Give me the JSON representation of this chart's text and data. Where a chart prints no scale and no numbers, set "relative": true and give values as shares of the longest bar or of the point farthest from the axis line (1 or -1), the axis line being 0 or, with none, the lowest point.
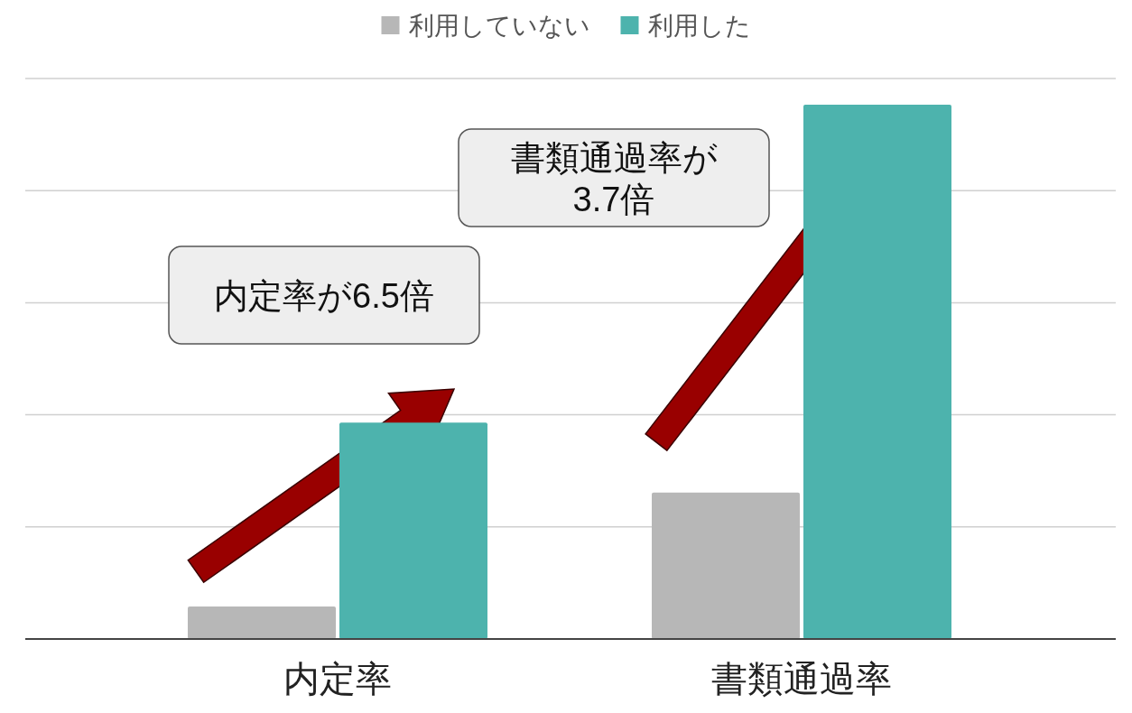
{
  "chart_data": {
    "type": "bar",
    "relative": true,
    "categories": [
      "内定率",
      "書類通過率"
    ],
    "series": [
      {
        "name": "利用していない",
        "color": "#b7b7b7",
        "values": [
          0.061,
          0.274
        ]
      },
      {
        "name": "利用した",
        "color": "#4db3ad",
        "values": [
          0.405,
          1.0
        ]
      }
    ],
    "grid": "y",
    "legend": "top",
    "annotations": [
      "内定率が6.5倍",
      "書類通過率が3.7倍"
    ]
  }
}
